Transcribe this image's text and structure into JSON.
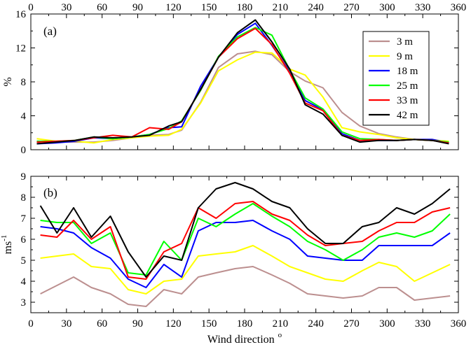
{
  "chart_data": [
    {
      "panel_label": "(a)",
      "type": "line",
      "ylabel": "%",
      "top_xticks": [
        "0",
        "30",
        "60",
        "90",
        "120",
        "150",
        "180",
        "210",
        "240",
        "270",
        "300",
        "330",
        "360"
      ],
      "xlim": [
        0,
        360
      ],
      "ylim": [
        0,
        16
      ],
      "yticks": [
        "0",
        "4",
        "8",
        "12",
        "16"
      ],
      "legend_position": "top-right",
      "series": [
        {
          "name": "3 m",
          "color": "#bc8f8f",
          "x": [
            5,
            21,
            37,
            53,
            69,
            85,
            100,
            116,
            127,
            143,
            158,
            174,
            189,
            203,
            218,
            231,
            246,
            262,
            277,
            293,
            308,
            323,
            338,
            352
          ],
          "y": [
            1.0,
            0.9,
            0.9,
            0.9,
            1.1,
            1.4,
            1.7,
            1.8,
            2.3,
            5.6,
            9.7,
            11.3,
            11.6,
            11.2,
            9.2,
            8.1,
            7.3,
            4.4,
            2.8,
            1.9,
            1.5,
            1.2,
            1.2,
            0.9
          ]
        },
        {
          "name": "9 m",
          "color": "#ffff00",
          "x": [
            5,
            21,
            37,
            53,
            69,
            85,
            100,
            116,
            127,
            143,
            158,
            174,
            189,
            203,
            218,
            231,
            246,
            262,
            277,
            293,
            308,
            323,
            338,
            352
          ],
          "y": [
            1.3,
            1.0,
            1.0,
            0.8,
            1.2,
            1.4,
            1.6,
            1.7,
            2.4,
            5.5,
            9.3,
            10.6,
            11.5,
            11.4,
            9.5,
            8.8,
            6.2,
            2.6,
            2.1,
            1.8,
            1.4,
            1.2,
            1.1,
            1.0
          ]
        },
        {
          "name": "18 m",
          "color": "#0000ff",
          "x": [
            5,
            21,
            37,
            53,
            69,
            85,
            100,
            116,
            127,
            143,
            158,
            174,
            189,
            203,
            218,
            231,
            246,
            262,
            277,
            293,
            308,
            323,
            338,
            352
          ],
          "y": [
            0.7,
            0.8,
            1.0,
            1.4,
            1.3,
            1.5,
            1.8,
            2.6,
            2.7,
            7.5,
            10.9,
            13.6,
            14.9,
            12.3,
            9.2,
            5.8,
            4.7,
            1.9,
            1.1,
            1.1,
            1.1,
            1.2,
            1.2,
            0.8
          ]
        },
        {
          "name": "25 m",
          "color": "#00ff00",
          "x": [
            5,
            21,
            37,
            53,
            69,
            85,
            100,
            116,
            127,
            143,
            158,
            174,
            189,
            203,
            218,
            231,
            246,
            262,
            277,
            293,
            308,
            323,
            338,
            352
          ],
          "y": [
            1.0,
            1.0,
            1.1,
            1.5,
            1.3,
            1.5,
            1.8,
            2.5,
            3.4,
            7.0,
            11.0,
            13.3,
            14.4,
            13.5,
            9.4,
            6.1,
            4.8,
            2.1,
            1.3,
            1.2,
            1.1,
            1.2,
            1.1,
            0.9
          ]
        },
        {
          "name": "33 m",
          "color": "#ff0000",
          "x": [
            5,
            21,
            37,
            53,
            69,
            85,
            100,
            116,
            127,
            143,
            158,
            174,
            189,
            203,
            218,
            231,
            246,
            262,
            277,
            293,
            308,
            323,
            338,
            352
          ],
          "y": [
            0.9,
            1.0,
            1.1,
            1.4,
            1.7,
            1.5,
            2.6,
            2.4,
            3.3,
            7.1,
            10.9,
            13.1,
            14.3,
            12.4,
            9.0,
            5.5,
            4.6,
            1.7,
            1.1,
            1.2,
            1.1,
            1.2,
            1.1,
            0.8
          ]
        },
        {
          "name": "42 m",
          "color": "#000000",
          "x": [
            5,
            21,
            37,
            53,
            69,
            85,
            100,
            116,
            127,
            143,
            158,
            174,
            189,
            203,
            218,
            231,
            246,
            262,
            277,
            293,
            308,
            323,
            338,
            352
          ],
          "y": [
            0.7,
            0.9,
            1.1,
            1.5,
            1.4,
            1.5,
            1.7,
            2.8,
            3.3,
            7.1,
            10.9,
            13.8,
            15.3,
            12.7,
            9.5,
            5.3,
            4.2,
            1.7,
            0.9,
            1.1,
            1.1,
            1.2,
            1.1,
            0.7
          ]
        }
      ]
    },
    {
      "panel_label": "(b)",
      "type": "line",
      "xlabel": "Wind direction",
      "xlabel_suffix": "o",
      "ylabel": "ms",
      "ylabel_superscript": "-1",
      "xlim": [
        0,
        360
      ],
      "ylim": [
        2.5,
        9
      ],
      "xticks": [
        "0",
        "30",
        "60",
        "90",
        "120",
        "150",
        "180",
        "210",
        "240",
        "270",
        "300",
        "330",
        "360"
      ],
      "yticks": [
        "3",
        "4",
        "5",
        "6",
        "7",
        "8",
        "9"
      ],
      "series": [
        {
          "name": "3 m",
          "color": "#bc8f8f",
          "x": [
            8,
            22,
            36,
            51,
            67,
            82,
            97,
            112,
            127,
            141,
            156,
            172,
            187,
            203,
            218,
            233,
            248,
            263,
            279,
            293,
            308,
            323,
            338,
            353
          ],
          "y": [
            3.4,
            3.8,
            4.2,
            3.7,
            3.4,
            2.9,
            2.8,
            3.6,
            3.4,
            4.2,
            4.4,
            4.6,
            4.7,
            4.3,
            3.9,
            3.4,
            3.3,
            3.2,
            3.3,
            3.7,
            3.7,
            3.1,
            3.2,
            3.3
          ]
        },
        {
          "name": "9 m",
          "color": "#ffff00",
          "x": [
            8,
            22,
            36,
            51,
            67,
            82,
            97,
            112,
            127,
            141,
            156,
            172,
            187,
            203,
            218,
            233,
            248,
            263,
            279,
            293,
            308,
            323,
            338,
            353
          ],
          "y": [
            5.1,
            5.2,
            5.3,
            4.7,
            4.6,
            3.6,
            3.4,
            4.0,
            4.1,
            5.2,
            5.3,
            5.4,
            5.7,
            5.2,
            4.7,
            4.4,
            4.1,
            4.0,
            4.5,
            4.9,
            4.7,
            4.0,
            4.4,
            4.8
          ]
        },
        {
          "name": "18 m",
          "color": "#0000ff",
          "x": [
            8,
            22,
            36,
            51,
            67,
            82,
            97,
            112,
            127,
            141,
            156,
            172,
            187,
            203,
            218,
            233,
            248,
            263,
            279,
            293,
            308,
            323,
            338,
            353
          ],
          "y": [
            6.6,
            6.5,
            6.3,
            5.6,
            5.1,
            4.1,
            3.7,
            4.8,
            4.2,
            6.4,
            6.8,
            6.8,
            6.9,
            6.4,
            6.0,
            5.2,
            5.1,
            5.0,
            5.0,
            5.7,
            5.7,
            5.7,
            5.7,
            6.3
          ]
        },
        {
          "name": "25 m",
          "color": "#00ff00",
          "x": [
            8,
            22,
            36,
            51,
            67,
            82,
            97,
            112,
            127,
            141,
            156,
            172,
            187,
            203,
            218,
            233,
            248,
            263,
            279,
            293,
            308,
            323,
            338,
            353
          ],
          "y": [
            6.9,
            6.8,
            6.8,
            5.8,
            6.3,
            4.4,
            4.3,
            5.9,
            5.0,
            7.0,
            6.6,
            7.2,
            7.7,
            7.1,
            6.6,
            5.9,
            5.5,
            5.0,
            5.5,
            6.1,
            6.3,
            6.1,
            6.4,
            7.2
          ]
        },
        {
          "name": "33 m",
          "color": "#ff0000",
          "x": [
            8,
            22,
            36,
            51,
            67,
            82,
            97,
            112,
            127,
            141,
            156,
            172,
            187,
            203,
            218,
            233,
            248,
            263,
            279,
            293,
            308,
            323,
            338,
            353
          ],
          "y": [
            6.2,
            6.1,
            6.9,
            6.0,
            6.6,
            4.2,
            4.1,
            5.4,
            5.8,
            7.5,
            7.0,
            7.7,
            7.8,
            7.2,
            6.9,
            6.2,
            5.7,
            5.8,
            5.9,
            6.4,
            6.8,
            6.8,
            7.3,
            7.5
          ]
        },
        {
          "name": "42 m",
          "color": "#000000",
          "x": [
            8,
            22,
            36,
            51,
            67,
            82,
            97,
            112,
            127,
            141,
            156,
            172,
            187,
            203,
            218,
            233,
            248,
            263,
            279,
            293,
            308,
            323,
            338,
            353
          ],
          "y": [
            7.6,
            6.3,
            7.5,
            6.1,
            7.1,
            5.4,
            4.2,
            5.2,
            5.0,
            7.5,
            8.4,
            8.7,
            8.4,
            7.8,
            7.5,
            6.5,
            5.8,
            5.8,
            6.6,
            6.8,
            7.5,
            7.2,
            7.7,
            8.4
          ]
        }
      ]
    }
  ]
}
